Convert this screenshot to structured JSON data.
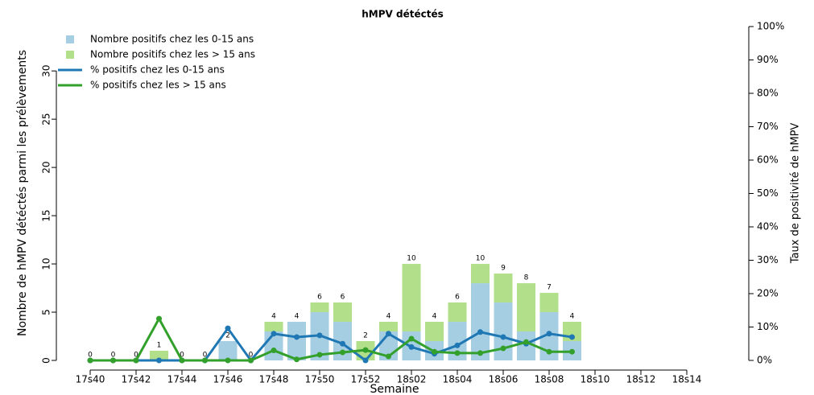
{
  "chart_data": {
    "type": "bar-line",
    "title": "hMPV détéctés",
    "x_label": "Semaine",
    "y_label": "Nombre de hMPV détéctés parmi les prélèvements",
    "y2_label": "Taux de positivité de hMPV",
    "categories": [
      "17s40",
      null,
      "17s42",
      null,
      "17s44",
      null,
      "17s46",
      null,
      "17s48",
      null,
      "17s50",
      null,
      "17s52",
      null,
      "18s02",
      null,
      "18s04",
      null,
      "18s06",
      null,
      "18s08",
      null,
      "18s10",
      null,
      "18s12",
      null,
      "18s14",
      null
    ],
    "series": [
      {
        "name": "Nombre positifs chez les 0-15 ans",
        "type": "bar",
        "color": "#a6cee3",
        "values": [
          0,
          0,
          0,
          0,
          0,
          0,
          2,
          0,
          3,
          4,
          5,
          4,
          0,
          3,
          3,
          2,
          4,
          8,
          6,
          3,
          5,
          2,
          null,
          null,
          null,
          null,
          null,
          null
        ]
      },
      {
        "name": "Nombre positifs chez les > 15 ans",
        "type": "bar",
        "color": "#b2df8a",
        "values": [
          0,
          0,
          0,
          1,
          0,
          0,
          0,
          0,
          1,
          0,
          1,
          2,
          2,
          1,
          7,
          2,
          2,
          2,
          3,
          5,
          2,
          2,
          null,
          null,
          null,
          null,
          null,
          null
        ]
      },
      {
        "name": "% positifs chez les 0-15 ans",
        "type": "line",
        "axis": "y2",
        "color": "#1f78b4",
        "values": [
          0,
          0,
          0,
          0,
          0,
          0,
          9.6,
          0,
          8,
          7,
          7.5,
          5,
          0,
          8,
          4,
          2,
          4.5,
          8.5,
          7,
          5,
          8,
          7,
          null,
          null,
          null,
          null,
          null,
          null
        ]
      },
      {
        "name": "% positifs chez les > 15 ans",
        "type": "line",
        "axis": "y2",
        "color": "#33a02c",
        "values": [
          0,
          0,
          0,
          12.5,
          0,
          0,
          0,
          0,
          3,
          0.3,
          1.7,
          2.4,
          3.1,
          1.2,
          6.5,
          2.6,
          2.2,
          2.2,
          3.6,
          5.5,
          2.6,
          2.6,
          null,
          null,
          null,
          null,
          null,
          null
        ]
      }
    ],
    "totals": [
      0,
      0,
      0,
      1,
      0,
      0,
      2,
      0,
      4,
      4,
      6,
      6,
      2,
      4,
      10,
      4,
      6,
      10,
      9,
      8,
      7,
      4,
      null,
      null,
      null,
      null,
      null,
      null
    ],
    "ylim": [
      0,
      34.6
    ],
    "yticks": [
      0,
      5,
      10,
      15,
      20,
      25,
      30
    ],
    "y2lim": [
      0,
      100
    ],
    "y2ticks": [
      {
        "value": 0,
        "label": "0%"
      },
      {
        "value": 10,
        "label": "10%"
      },
      {
        "value": 20,
        "label": "20%"
      },
      {
        "value": 30,
        "label": "30%"
      },
      {
        "value": 40,
        "label": "40%"
      },
      {
        "value": 50,
        "label": "50%"
      },
      {
        "value": 60,
        "label": "60%"
      },
      {
        "value": 70,
        "label": "70%"
      },
      {
        "value": 80,
        "label": "80%"
      },
      {
        "value": 90,
        "label": "90%"
      },
      {
        "value": 100,
        "label": "100%"
      }
    ],
    "legend": "top-left"
  }
}
